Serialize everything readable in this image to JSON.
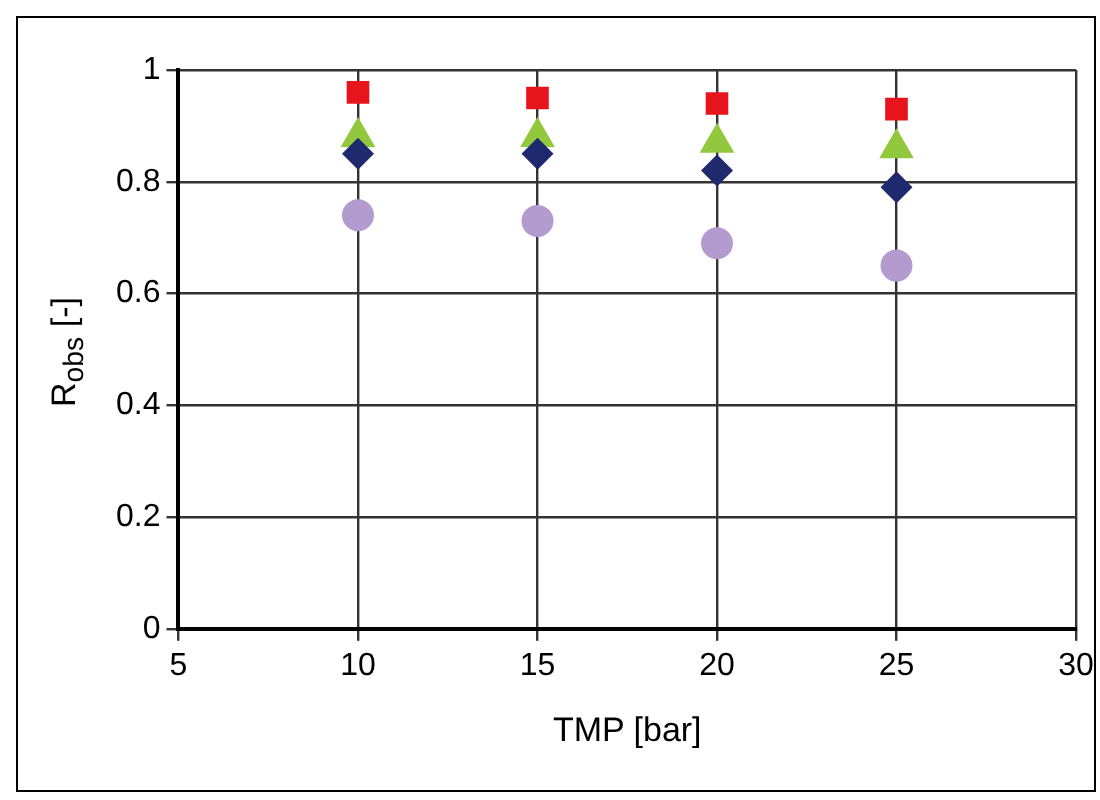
{
  "chart_data": {
    "type": "scatter",
    "xlabel": "TMP [bar]",
    "ylabel": "R$_{obs}$ [-]",
    "xlim": [
      5,
      30
    ],
    "xticks": [
      5,
      10,
      15,
      20,
      25,
      30
    ],
    "ylim": [
      0,
      1
    ],
    "yticks": [
      0,
      0.2,
      0.4,
      0.6,
      0.8,
      1
    ],
    "grid": true,
    "legend": false,
    "x": [
      10,
      15,
      20,
      25
    ],
    "series": [
      {
        "color": "#1f2a6e",
        "marker": "diamond",
        "values": [
          0.85,
          0.85,
          0.82,
          0.79
        ]
      },
      {
        "color": "#b39bd0",
        "marker": "circle",
        "values": [
          0.74,
          0.73,
          0.69,
          0.65
        ]
      },
      {
        "color": "#92c83e",
        "marker": "triangle",
        "values": [
          0.88,
          0.88,
          0.87,
          0.86
        ]
      },
      {
        "color": "#e8141c",
        "marker": "square",
        "values": [
          0.96,
          0.95,
          0.94,
          0.93
        ]
      }
    ]
  }
}
